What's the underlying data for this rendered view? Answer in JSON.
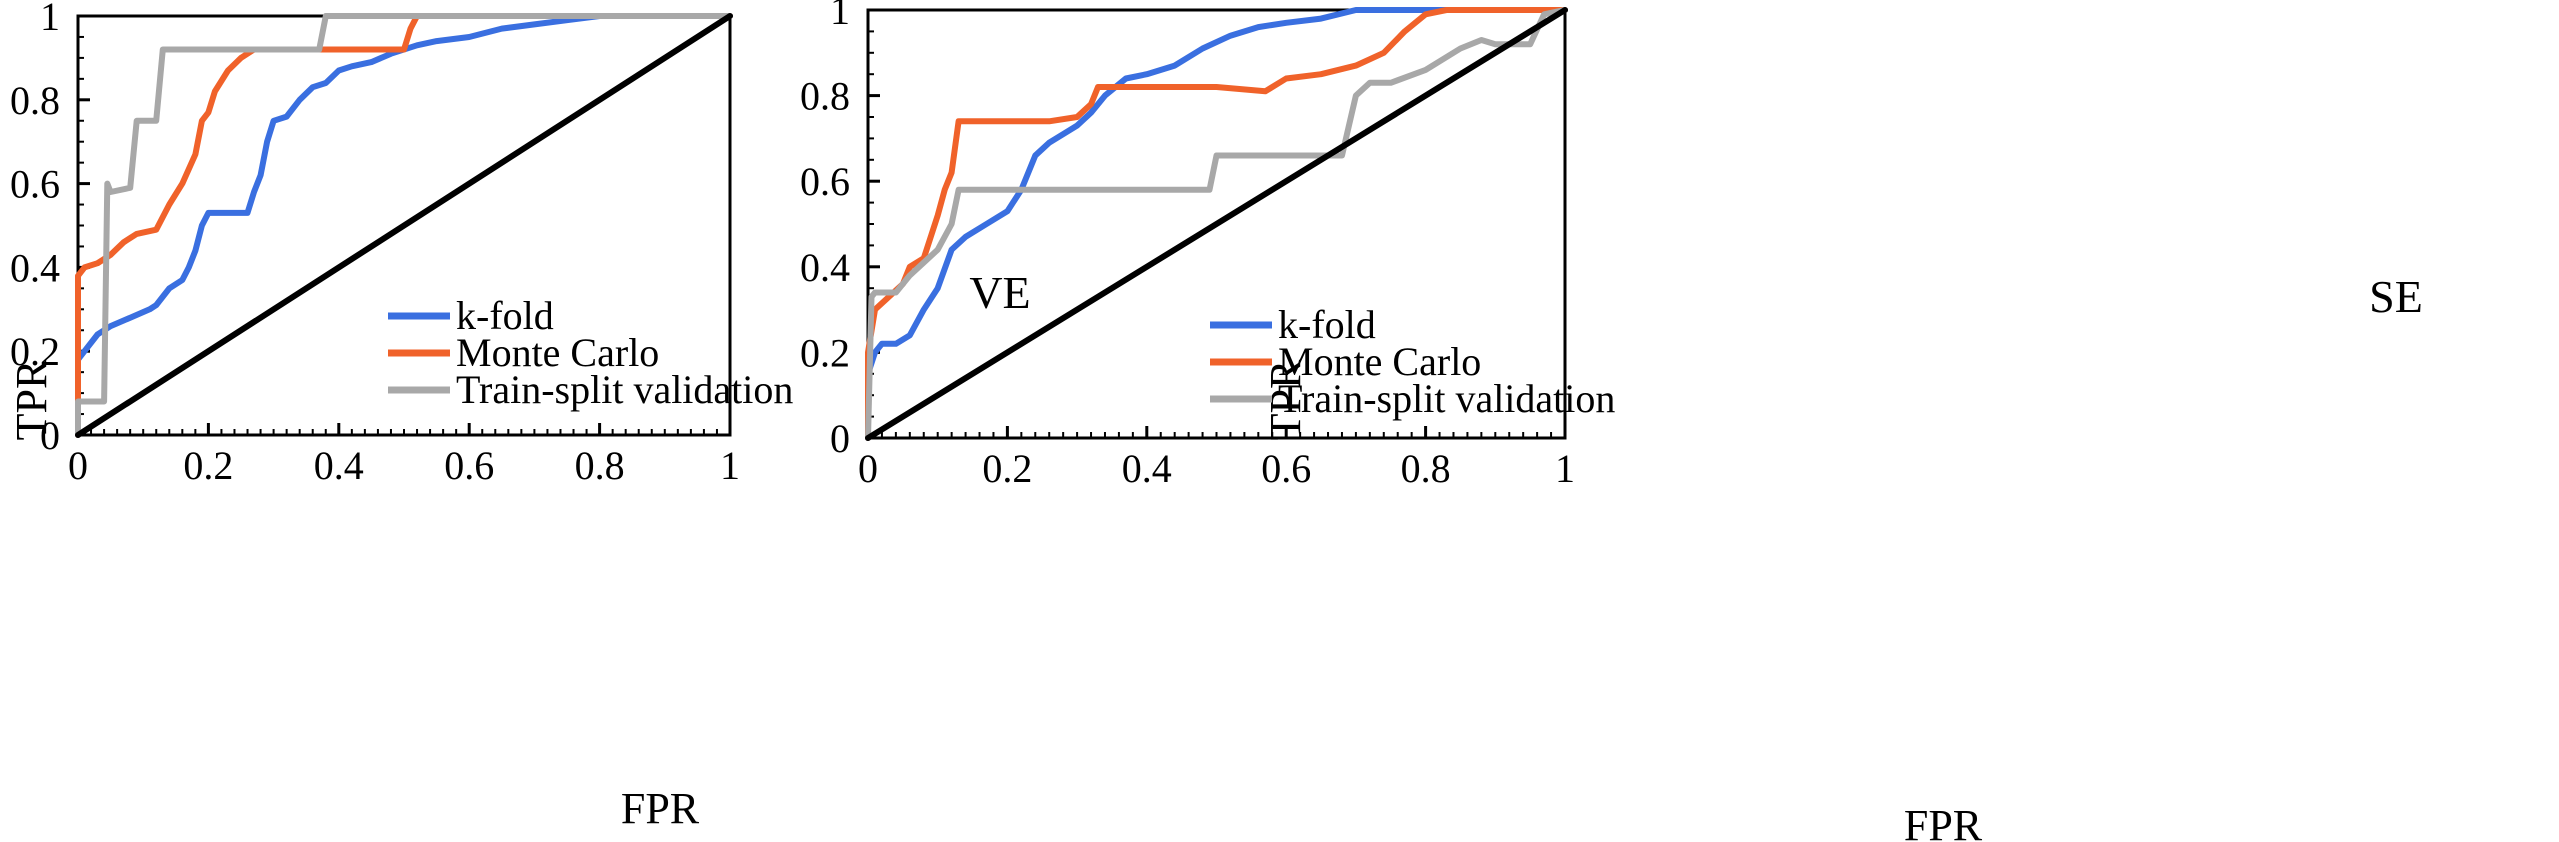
{
  "chart_data": [
    {
      "type": "line",
      "xlabel": "FPR",
      "ylabel": "TPR",
      "xlim": [
        0,
        1
      ],
      "ylim": [
        0,
        1
      ],
      "xticks": [
        "0",
        "0.2",
        "0.4",
        "0.6",
        "0.8",
        "1"
      ],
      "yticks": [
        "0",
        "0.2",
        "0.4",
        "0.6",
        "0.8",
        "1"
      ],
      "annotation": "VE",
      "legend_position": "bottom-right",
      "series": [
        {
          "name": "k-fold",
          "color": "#3A6FE0",
          "points": [
            [
              0,
              0
            ],
            [
              0,
              0.18
            ],
            [
              0.01,
              0.2
            ],
            [
              0.03,
              0.24
            ],
            [
              0.05,
              0.26
            ],
            [
              0.08,
              0.28
            ],
            [
              0.11,
              0.3
            ],
            [
              0.12,
              0.31
            ],
            [
              0.14,
              0.35
            ],
            [
              0.16,
              0.37
            ],
            [
              0.17,
              0.4
            ],
            [
              0.18,
              0.44
            ],
            [
              0.19,
              0.5
            ],
            [
              0.2,
              0.53
            ],
            [
              0.22,
              0.53
            ],
            [
              0.26,
              0.53
            ],
            [
              0.27,
              0.58
            ],
            [
              0.28,
              0.62
            ],
            [
              0.29,
              0.7
            ],
            [
              0.3,
              0.75
            ],
            [
              0.32,
              0.76
            ],
            [
              0.34,
              0.8
            ],
            [
              0.36,
              0.83
            ],
            [
              0.38,
              0.84
            ],
            [
              0.4,
              0.87
            ],
            [
              0.42,
              0.88
            ],
            [
              0.45,
              0.89
            ],
            [
              0.48,
              0.91
            ],
            [
              0.52,
              0.93
            ],
            [
              0.55,
              0.94
            ],
            [
              0.6,
              0.95
            ],
            [
              0.65,
              0.97
            ],
            [
              0.7,
              0.98
            ],
            [
              0.75,
              0.99
            ],
            [
              0.8,
              1
            ],
            [
              0.9,
              1
            ],
            [
              0.97,
              1
            ],
            [
              1,
              1
            ]
          ]
        },
        {
          "name": "Monte Carlo",
          "color": "#F0622A",
          "points": [
            [
              0,
              0
            ],
            [
              0,
              0.38
            ],
            [
              0.01,
              0.4
            ],
            [
              0.03,
              0.41
            ],
            [
              0.05,
              0.43
            ],
            [
              0.07,
              0.46
            ],
            [
              0.09,
              0.48
            ],
            [
              0.12,
              0.49
            ],
            [
              0.14,
              0.55
            ],
            [
              0.16,
              0.6
            ],
            [
              0.18,
              0.67
            ],
            [
              0.19,
              0.75
            ],
            [
              0.2,
              0.77
            ],
            [
              0.21,
              0.82
            ],
            [
              0.23,
              0.87
            ],
            [
              0.25,
              0.9
            ],
            [
              0.27,
              0.92
            ],
            [
              0.3,
              0.92
            ],
            [
              0.4,
              0.92
            ],
            [
              0.5,
              0.92
            ],
            [
              0.51,
              0.97
            ],
            [
              0.52,
              1
            ],
            [
              0.6,
              1
            ],
            [
              0.7,
              1
            ],
            [
              0.8,
              1
            ],
            [
              0.9,
              1
            ],
            [
              1,
              1
            ]
          ]
        },
        {
          "name": "Train-split validation",
          "color": "#A8A8A8",
          "points": [
            [
              0,
              0
            ],
            [
              0,
              0.08
            ],
            [
              0.04,
              0.08
            ],
            [
              0.045,
              0.6
            ],
            [
              0.05,
              0.58
            ],
            [
              0.08,
              0.59
            ],
            [
              0.09,
              0.75
            ],
            [
              0.12,
              0.75
            ],
            [
              0.13,
              0.92
            ],
            [
              0.16,
              0.92
            ],
            [
              0.2,
              0.92
            ],
            [
              0.3,
              0.92
            ],
            [
              0.37,
              0.92
            ],
            [
              0.38,
              1
            ],
            [
              0.5,
              1
            ],
            [
              0.6,
              1
            ],
            [
              0.7,
              1
            ],
            [
              0.8,
              1
            ],
            [
              0.9,
              1
            ],
            [
              1,
              1
            ]
          ]
        },
        {
          "name": "",
          "color": "#000000",
          "points": [
            [
              0,
              0
            ],
            [
              1,
              1
            ]
          ]
        }
      ]
    },
    {
      "type": "line",
      "xlabel": "FPR",
      "ylabel": "TPR",
      "xlim": [
        0,
        1
      ],
      "ylim": [
        0,
        1
      ],
      "xticks": [
        "0",
        "0.2",
        "0.4",
        "0.6",
        "0.8",
        "1"
      ],
      "yticks": [
        "0",
        "0.2",
        "0.4",
        "0.6",
        "0.8",
        "1"
      ],
      "annotation": "SE",
      "legend_position": "bottom-right",
      "series": [
        {
          "name": "k-fold",
          "color": "#3A6FE0",
          "points": [
            [
              0,
              0
            ],
            [
              0,
              0.15
            ],
            [
              0.01,
              0.2
            ],
            [
              0.02,
              0.22
            ],
            [
              0.04,
              0.22
            ],
            [
              0.06,
              0.24
            ],
            [
              0.08,
              0.3
            ],
            [
              0.1,
              0.35
            ],
            [
              0.12,
              0.44
            ],
            [
              0.14,
              0.47
            ],
            [
              0.17,
              0.5
            ],
            [
              0.2,
              0.53
            ],
            [
              0.22,
              0.58
            ],
            [
              0.24,
              0.66
            ],
            [
              0.26,
              0.69
            ],
            [
              0.3,
              0.73
            ],
            [
              0.32,
              0.76
            ],
            [
              0.34,
              0.8
            ],
            [
              0.37,
              0.84
            ],
            [
              0.4,
              0.85
            ],
            [
              0.44,
              0.87
            ],
            [
              0.48,
              0.91
            ],
            [
              0.52,
              0.94
            ],
            [
              0.56,
              0.96
            ],
            [
              0.6,
              0.97
            ],
            [
              0.65,
              0.98
            ],
            [
              0.7,
              1
            ],
            [
              0.8,
              1
            ],
            [
              0.9,
              1
            ],
            [
              1,
              1
            ]
          ]
        },
        {
          "name": "Monte Carlo",
          "color": "#F0622A",
          "points": [
            [
              0,
              0
            ],
            [
              0,
              0.2
            ],
            [
              0.01,
              0.3
            ],
            [
              0.03,
              0.33
            ],
            [
              0.05,
              0.36
            ],
            [
              0.06,
              0.4
            ],
            [
              0.08,
              0.42
            ],
            [
              0.1,
              0.52
            ],
            [
              0.11,
              0.58
            ],
            [
              0.12,
              0.62
            ],
            [
              0.13,
              0.74
            ],
            [
              0.16,
              0.74
            ],
            [
              0.2,
              0.74
            ],
            [
              0.26,
              0.74
            ],
            [
              0.3,
              0.75
            ],
            [
              0.32,
              0.78
            ],
            [
              0.33,
              0.82
            ],
            [
              0.4,
              0.82
            ],
            [
              0.5,
              0.82
            ],
            [
              0.57,
              0.81
            ],
            [
              0.6,
              0.84
            ],
            [
              0.65,
              0.85
            ],
            [
              0.7,
              0.87
            ],
            [
              0.74,
              0.9
            ],
            [
              0.77,
              0.95
            ],
            [
              0.8,
              0.99
            ],
            [
              0.83,
              1
            ],
            [
              0.9,
              1
            ],
            [
              1,
              1
            ]
          ]
        },
        {
          "name": "Train-split validation",
          "color": "#A8A8A8",
          "points": [
            [
              0,
              0
            ],
            [
              0.005,
              0.33
            ],
            [
              0.01,
              0.34
            ],
            [
              0.04,
              0.34
            ],
            [
              0.06,
              0.38
            ],
            [
              0.08,
              0.41
            ],
            [
              0.1,
              0.44
            ],
            [
              0.12,
              0.5
            ],
            [
              0.13,
              0.58
            ],
            [
              0.2,
              0.58
            ],
            [
              0.3,
              0.58
            ],
            [
              0.4,
              0.58
            ],
            [
              0.49,
              0.58
            ],
            [
              0.5,
              0.66
            ],
            [
              0.6,
              0.66
            ],
            [
              0.68,
              0.66
            ],
            [
              0.7,
              0.8
            ],
            [
              0.72,
              0.83
            ],
            [
              0.75,
              0.83
            ],
            [
              0.8,
              0.86
            ],
            [
              0.85,
              0.91
            ],
            [
              0.88,
              0.93
            ],
            [
              0.9,
              0.92
            ],
            [
              0.95,
              0.92
            ],
            [
              0.97,
              0.99
            ],
            [
              1,
              1
            ]
          ]
        },
        {
          "name": "",
          "color": "#000000",
          "points": [
            [
              0,
              0
            ],
            [
              1,
              1
            ]
          ]
        }
      ]
    }
  ]
}
